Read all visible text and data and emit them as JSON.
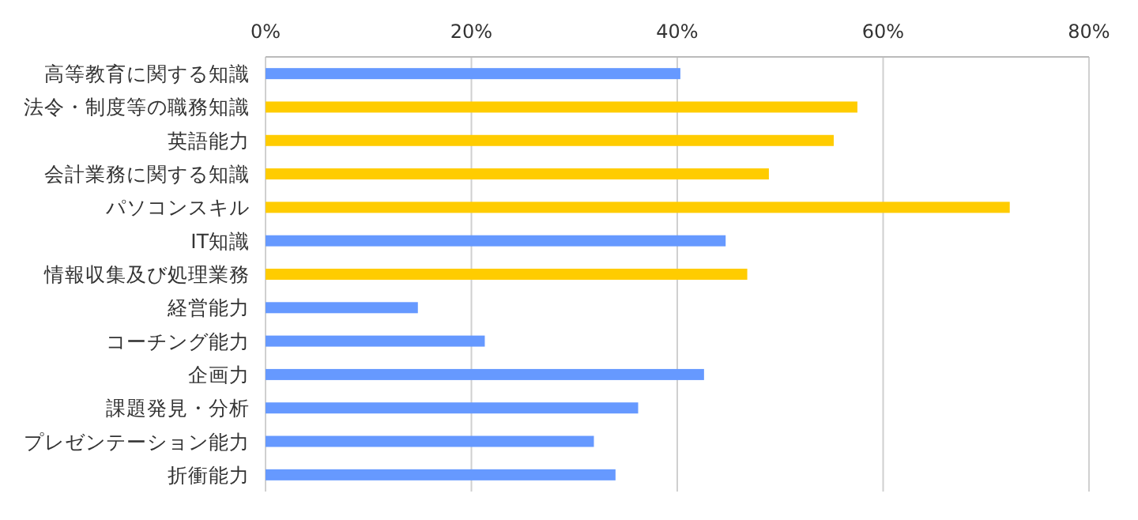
{
  "chart_data": {
    "type": "bar",
    "orientation": "horizontal",
    "grid": "x",
    "categories": [
      "高等教育に関する知識",
      "法令・制度等の職務知識",
      "英語能力",
      "会計業務に関する知識",
      "パソコンスキル",
      "IT知識",
      "情報収集及び処理業務",
      "経営能力",
      "コーチング能力",
      "企画力",
      "課題発見・分析",
      "プレゼンテーション能力",
      "折衝能力"
    ],
    "values": [
      40.3,
      57.5,
      55.2,
      48.9,
      72.3,
      44.7,
      46.8,
      14.8,
      21.3,
      42.6,
      36.2,
      31.9,
      34.0
    ],
    "colors": [
      "#6699ff",
      "#ffcc00",
      "#ffcc00",
      "#ffcc00",
      "#ffcc00",
      "#6699ff",
      "#ffcc00",
      "#6699ff",
      "#6699ff",
      "#6699ff",
      "#6699ff",
      "#6699ff",
      "#6699ff"
    ],
    "xlim": [
      0,
      80
    ],
    "xticks": [
      {
        "value": 0,
        "label": "0%"
      },
      {
        "value": 20,
        "label": "20%"
      },
      {
        "value": 40,
        "label": "40%"
      },
      {
        "value": 60,
        "label": "60%"
      },
      {
        "value": 80,
        "label": "80%"
      }
    ]
  }
}
